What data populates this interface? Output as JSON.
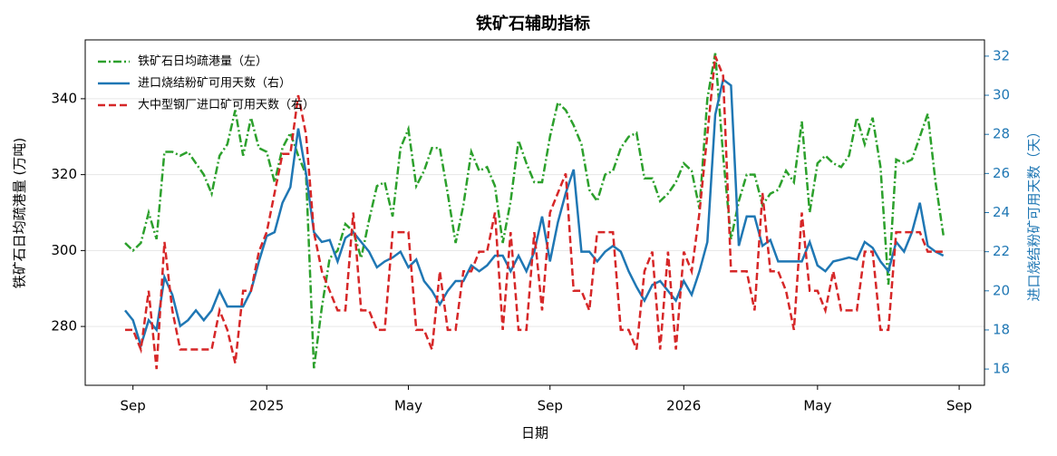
{
  "chart_data": {
    "type": "line",
    "title": "铁矿石辅助指标",
    "x_label": "日期",
    "y_label": "铁矿石日均疏港量 (万吨)",
    "y2_label": "进口烧结粉矿可用天数（天）",
    "y2_color": "#1f77b4",
    "categories": [
      null,
      "Sep",
      null,
      null,
      null,
      null,
      null,
      null,
      null,
      null,
      null,
      null,
      null,
      null,
      null,
      null,
      null,
      null,
      "2025",
      null,
      null,
      null,
      null,
      null,
      null,
      null,
      null,
      null,
      null,
      null,
      null,
      null,
      null,
      null,
      null,
      null,
      "May",
      null,
      null,
      null,
      null,
      null,
      null,
      null,
      null,
      null,
      null,
      null,
      null,
      null,
      null,
      null,
      null,
      null,
      "Sep",
      null,
      null,
      null,
      null,
      null,
      null,
      null,
      null,
      null,
      null,
      null,
      null,
      null,
      null,
      null,
      null,
      "2026",
      null,
      null,
      null,
      null,
      null,
      null,
      null,
      null,
      null,
      null,
      null,
      null,
      null,
      null,
      null,
      null,
      "May",
      null,
      null,
      null,
      null,
      null,
      null,
      null,
      null,
      null,
      null,
      null,
      null,
      null,
      null,
      null,
      null,
      null,
      "Sep"
    ],
    "series": [
      {
        "name": "铁矿石日均疏港量（左）",
        "color": "#2ca02c",
        "linestyle": "dashdot",
        "axis": "y",
        "values": [
          302,
          300,
          302,
          310,
          303,
          326,
          326,
          325,
          326,
          323,
          320,
          315,
          325,
          328,
          337,
          325,
          335,
          327,
          326,
          318,
          327,
          331,
          325,
          320,
          269,
          285,
          298,
          300,
          307,
          305,
          298,
          308,
          317,
          318,
          309,
          327,
          332,
          317,
          321,
          327,
          327,
          315,
          302,
          312,
          326,
          321,
          322,
          317,
          302,
          313,
          329,
          323,
          318,
          318,
          330,
          339,
          337,
          333,
          328,
          316,
          313,
          320,
          321,
          327,
          330,
          331,
          319,
          319,
          313,
          315,
          318,
          323,
          321,
          311,
          340,
          352,
          325,
          303,
          313,
          320,
          320,
          312,
          315,
          316,
          321,
          318,
          334,
          310,
          323,
          325,
          323,
          322,
          325,
          335,
          328,
          335,
          322,
          291,
          324,
          323,
          324,
          330,
          336,
          318,
          304,
          null,
          null
        ]
      },
      {
        "name": "进口烧结粉矿可用天数（右）",
        "color": "#1f77b4",
        "linestyle": "solid",
        "axis": "y2",
        "values": [
          19,
          18.5,
          17.2,
          18.5,
          18,
          20.7,
          19.8,
          18.2,
          18.5,
          19,
          18.5,
          19,
          20,
          19.2,
          19.2,
          19.2,
          20,
          21.5,
          22.8,
          23,
          24.5,
          25.3,
          28.3,
          26,
          23,
          22.5,
          22.6,
          21.5,
          22.7,
          23,
          22.5,
          22,
          21.2,
          21.5,
          21.7,
          22,
          21.2,
          21.6,
          20.5,
          20,
          19.3,
          20,
          20.5,
          20.5,
          21.3,
          21,
          21.3,
          21.8,
          21.8,
          21,
          21.8,
          21,
          22,
          23.8,
          21.5,
          23.5,
          25,
          26.2,
          22,
          22,
          21.5,
          22,
          22.3,
          22,
          21,
          20.2,
          19.5,
          20.3,
          20.5,
          20,
          19.5,
          20.5,
          19.8,
          21,
          22.5,
          29,
          30.8,
          30.5,
          22.3,
          23.8,
          23.8,
          22.3,
          22.6,
          21.5,
          21.5,
          21.5,
          21.5,
          22.5,
          21.3,
          21,
          21.5,
          21.6,
          21.7,
          21.6,
          22.5,
          22.2,
          21.5,
          21,
          22.5,
          22,
          23,
          24.5,
          22.3,
          22,
          21.8,
          null,
          null
        ]
      },
      {
        "name": "大中型钢厂进口矿可用天数（右）",
        "color": "#d62728",
        "linestyle": "dashed",
        "axis": "y2",
        "values": [
          18,
          18,
          17,
          20,
          16,
          22.5,
          19,
          17,
          17,
          17,
          17,
          17,
          19,
          18,
          16.3,
          20,
          20,
          22,
          23,
          25,
          27,
          27,
          30,
          28,
          23,
          21,
          20,
          19,
          19,
          24,
          19,
          19,
          18,
          18,
          23,
          23,
          23,
          18,
          18,
          17,
          21,
          18,
          18,
          21,
          21,
          22,
          22,
          24,
          18,
          23,
          18,
          18,
          23,
          19,
          24,
          25,
          26,
          20,
          20,
          19,
          23,
          23,
          23,
          18,
          18,
          17,
          21,
          22,
          17,
          22,
          17,
          22,
          21,
          24,
          28,
          32,
          31,
          21,
          21,
          21,
          19,
          25,
          21,
          21,
          20,
          18,
          24,
          20,
          20,
          19,
          21,
          19,
          19,
          19,
          22,
          22,
          18,
          18,
          23,
          23,
          23,
          23,
          22,
          22,
          22,
          null,
          null
        ]
      }
    ],
    "ylim": [
      264.5,
      355.5
    ],
    "yticks": [
      280,
      300,
      320,
      340
    ],
    "y2lim": [
      15.17,
      32.83
    ],
    "y2ticks": [
      16,
      18,
      20,
      22,
      24,
      26,
      28,
      30,
      32
    ],
    "grid": true,
    "legend": "upper left"
  }
}
